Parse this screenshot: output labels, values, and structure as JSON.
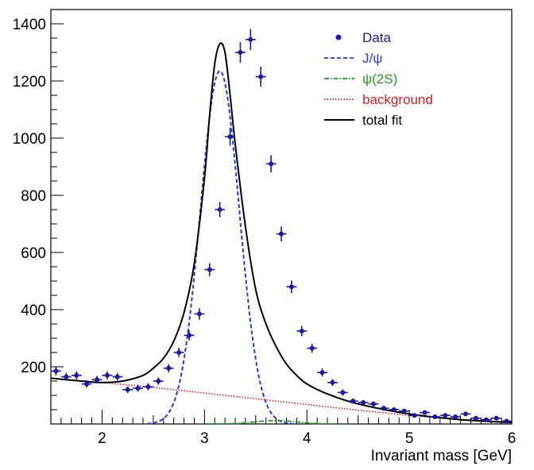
{
  "chart_data": {
    "type": "scatter",
    "title": "",
    "xlabel": "Invariant mass [GeV]",
    "ylabel": "",
    "xlim": [
      1.5,
      6.0
    ],
    "ylim": [
      0,
      1450
    ],
    "xticks": [
      2,
      3,
      4,
      5,
      6
    ],
    "xtick_labels": [
      "2",
      "3",
      "4",
      "5",
      "6"
    ],
    "yticks": [
      200,
      400,
      600,
      800,
      1000,
      1200,
      1400
    ],
    "ytick_labels": [
      "200",
      "400",
      "600",
      "800",
      "1000",
      "1200",
      "1400"
    ],
    "grid": false,
    "legend_position": "top-right",
    "legend": [
      {
        "key": "data",
        "label": "Data",
        "color": "#1a1aa6",
        "style": "marker"
      },
      {
        "key": "jpsi",
        "label": "J/ψ",
        "color": "#1f3fe0",
        "style": "dashed"
      },
      {
        "key": "psi2s",
        "label": "ψ(2S)",
        "color": "#1f9a1f",
        "style": "dashdot"
      },
      {
        "key": "bkg",
        "label": "background",
        "color": "#e01a1a",
        "style": "dotted"
      },
      {
        "key": "total",
        "label": "total fit",
        "color": "#000000",
        "style": "solid"
      }
    ],
    "data_points": {
      "x": [
        1.55,
        1.65,
        1.75,
        1.85,
        1.95,
        2.05,
        2.15,
        2.25,
        2.35,
        2.45,
        2.55,
        2.65,
        2.75,
        2.85,
        2.95,
        3.05,
        3.15,
        3.25,
        3.35,
        3.45,
        3.55,
        3.65,
        3.75,
        3.85,
        3.95,
        4.05,
        4.15,
        4.25,
        4.35,
        4.45,
        4.55,
        4.65,
        4.75,
        4.85,
        4.95,
        5.05,
        5.15,
        5.25,
        5.35,
        5.45,
        5.55,
        5.65,
        5.75,
        5.85,
        5.95
      ],
      "y": [
        185,
        165,
        170,
        140,
        155,
        170,
        165,
        120,
        125,
        130,
        150,
        195,
        250,
        310,
        385,
        540,
        750,
        1005,
        1300,
        1345,
        1215,
        910,
        665,
        480,
        325,
        265,
        180,
        145,
        110,
        80,
        75,
        70,
        55,
        50,
        45,
        30,
        40,
        25,
        30,
        25,
        35,
        20,
        15,
        20,
        10
      ],
      "yerr": [
        15,
        14,
        14,
        13,
        13,
        14,
        13,
        12,
        12,
        12,
        13,
        14,
        16,
        18,
        20,
        23,
        27,
        32,
        36,
        37,
        35,
        30,
        26,
        22,
        18,
        16,
        14,
        12,
        11,
        9,
        9,
        9,
        8,
        7,
        7,
        6,
        7,
        5,
        6,
        5,
        6,
        5,
        4,
        5,
        3
      ]
    },
    "model": {
      "jpsi": {
        "amplitude": 1235,
        "mean": 3.15,
        "sigma": 0.19
      },
      "psi2s": {
        "amplitude": 12,
        "mean": 3.7,
        "sigma": 0.2
      },
      "background": {
        "x": [
          1.5,
          2.0,
          2.5,
          3.0,
          3.5,
          4.0,
          4.5,
          5.0,
          5.5,
          6.0
        ],
        "y": [
          160,
          145,
          128,
          108,
          88,
          68,
          48,
          30,
          16,
          5
        ]
      },
      "total_fit": {
        "x": [
          1.5,
          1.8,
          2.0,
          2.2,
          2.4,
          2.5,
          2.6,
          2.7,
          2.8,
          2.9,
          3.0,
          3.05,
          3.1,
          3.15,
          3.2,
          3.25,
          3.3,
          3.4,
          3.5,
          3.6,
          3.7,
          3.8,
          3.9,
          4.0,
          4.2,
          4.5,
          5.0,
          5.5,
          6.0
        ],
        "y": [
          160,
          150,
          145,
          150,
          170,
          195,
          230,
          290,
          390,
          560,
          860,
          1080,
          1260,
          1330,
          1300,
          1150,
          980,
          690,
          470,
          350,
          270,
          210,
          170,
          140,
          105,
          70,
          35,
          15,
          5
        ]
      }
    }
  }
}
